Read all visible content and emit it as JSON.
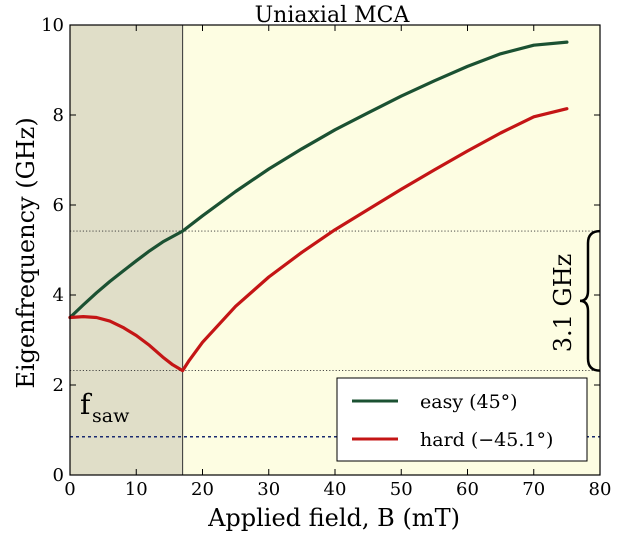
{
  "chart_data": {
    "type": "line",
    "title": "Uniaxial MCA",
    "xlabel": "Applied field, B (mT)",
    "ylabel": "Eigenfrequency (GHz)",
    "xlim": [
      0,
      80
    ],
    "ylim": [
      0,
      10
    ],
    "xticks": [
      "0",
      "10",
      "20",
      "30",
      "40",
      "50",
      "60",
      "70",
      "80"
    ],
    "yticks": [
      "0",
      "2",
      "4",
      "6",
      "8",
      "10"
    ],
    "grid": false,
    "legend_position": "bottom-right",
    "shaded_region": {
      "x_from": 0,
      "x_to": 17,
      "color": "#e0dec8"
    },
    "background_color": "#fdfde2",
    "series": [
      {
        "name": "easy (45°)",
        "color": "#1b5132",
        "x": [
          0,
          2,
          4,
          6,
          8,
          10,
          12,
          14,
          17,
          20,
          25,
          30,
          35,
          40,
          45,
          50,
          55,
          60,
          65,
          70,
          75
        ],
        "y": [
          3.5,
          3.78,
          4.05,
          4.3,
          4.53,
          4.76,
          4.98,
          5.18,
          5.42,
          5.76,
          6.3,
          6.8,
          7.25,
          7.67,
          8.05,
          8.42,
          8.76,
          9.08,
          9.36,
          9.55,
          9.62
        ]
      },
      {
        "name": "hard (−45.1°)",
        "color": "#c41515",
        "x": [
          0,
          2,
          4,
          6,
          8,
          10,
          12,
          14,
          15.5,
          17,
          18,
          20,
          25,
          30,
          35,
          40,
          45,
          50,
          55,
          60,
          65,
          70,
          75
        ],
        "y": [
          3.5,
          3.52,
          3.5,
          3.42,
          3.28,
          3.1,
          2.88,
          2.62,
          2.45,
          2.32,
          2.55,
          2.95,
          3.75,
          4.4,
          4.95,
          5.45,
          5.9,
          6.35,
          6.78,
          7.2,
          7.6,
          7.96,
          8.14
        ]
      }
    ],
    "reference_lines": [
      {
        "y": 5.42,
        "style": "dotted",
        "color": "#333333"
      },
      {
        "y": 2.32,
        "style": "dotted",
        "color": "#333333"
      },
      {
        "y": 0.85,
        "style": "dashed",
        "color": "#1a2b70"
      }
    ],
    "vertical_line": {
      "x": 17,
      "color": "#333333"
    },
    "annotations": {
      "fsaw_main": "f",
      "fsaw_sub": "saw",
      "fsaw_color": "#1a2b70",
      "gap_label": "3.1 GHz"
    }
  }
}
